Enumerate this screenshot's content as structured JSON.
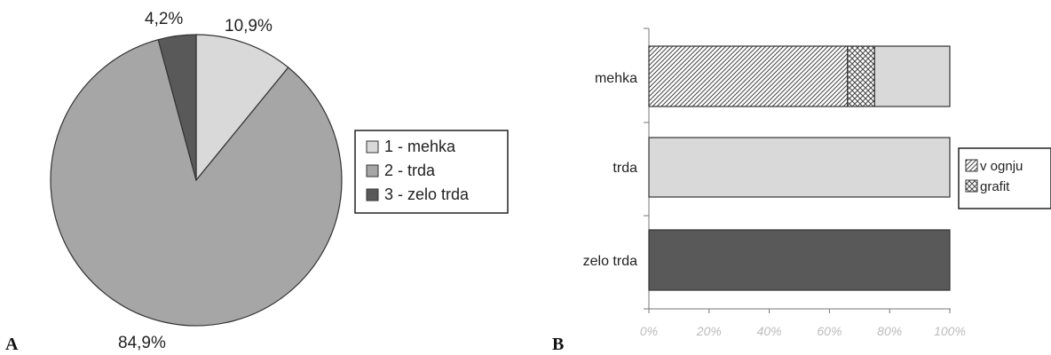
{
  "chart_data": [
    {
      "panel_label": "A",
      "type": "pie",
      "slices": [
        {
          "label": "1 - mehka",
          "value": 10.9,
          "value_label": "10,9%",
          "color": "#d9d9d9"
        },
        {
          "label": "2 - trda",
          "value": 84.9,
          "value_label": "84,9%",
          "color": "#a6a6a6"
        },
        {
          "label": "3 - zelo trda",
          "value": 4.2,
          "value_label": "4,2%",
          "color": "#595959"
        }
      ],
      "legend_position": "right"
    },
    {
      "panel_label": "B",
      "type": "bar",
      "orientation": "horizontal",
      "stacked": true,
      "categories": [
        "mehka",
        "trda",
        "zelo trda"
      ],
      "series": [
        {
          "name": "v ognju",
          "pattern": "diagonal-hatch",
          "values": [
            66,
            0,
            0
          ]
        },
        {
          "name": "grafit",
          "pattern": "crosshatch",
          "values": [
            9,
            0,
            0
          ]
        },
        {
          "values": [
            25,
            100,
            0
          ],
          "color": "#d9d9d9"
        },
        {
          "values": [
            0,
            0,
            0
          ],
          "color": "#a6a6a6"
        },
        {
          "values": [
            0,
            0,
            0
          ],
          "color": "#595959"
        }
      ],
      "category_colors": {
        "mehka": "#d9d9d9",
        "trda": "#a6a6a6",
        "zelo trda": "#595959"
      },
      "xlim": [
        0,
        100
      ],
      "xticks": [
        "0%",
        "20%",
        "40%",
        "60%",
        "80%",
        "100%"
      ],
      "legend_position": "right"
    }
  ]
}
